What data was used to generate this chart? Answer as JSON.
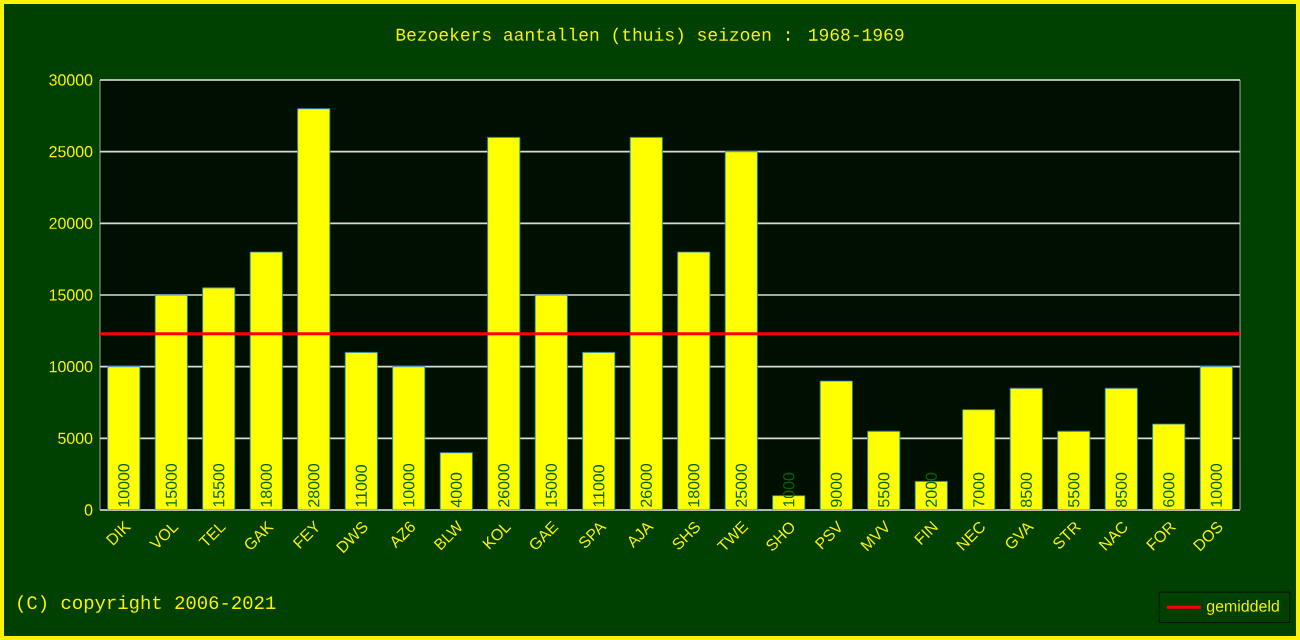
{
  "chart_data": {
    "type": "bar",
    "title": "Bezoekers aantallen (thuis) seizoen : 1968-1969",
    "categories": [
      "DIK",
      "VOL",
      "TEL",
      "GAK",
      "FEY",
      "DWS",
      "AZ6",
      "BLW",
      "KOL",
      "GAE",
      "SPA",
      "AJA",
      "SHS",
      "TWE",
      "SHO",
      "PSV",
      "MVV",
      "FIN",
      "NEC",
      "GVA",
      "STR",
      "NAC",
      "FOR",
      "DOS"
    ],
    "values": [
      10000,
      15000,
      15500,
      18000,
      28000,
      11000,
      10000,
      4000,
      26000,
      15000,
      11000,
      26000,
      18000,
      25000,
      1000,
      9000,
      5500,
      2000,
      7000,
      8500,
      5500,
      8500,
      6000,
      10000
    ],
    "color": "#ffff00",
    "ylim": [
      0,
      30000
    ],
    "yticks": [
      0,
      5000,
      10000,
      15000,
      20000,
      25000,
      30000
    ],
    "grid": "y",
    "data_labels": true,
    "legend": "bottom right",
    "ref_lines": [
      {
        "axis": "y",
        "value": 12300,
        "label": "gemiddeld",
        "color": "#ff0000"
      }
    ],
    "annotations": [
      "(C) copyright 2006-2021"
    ]
  }
}
